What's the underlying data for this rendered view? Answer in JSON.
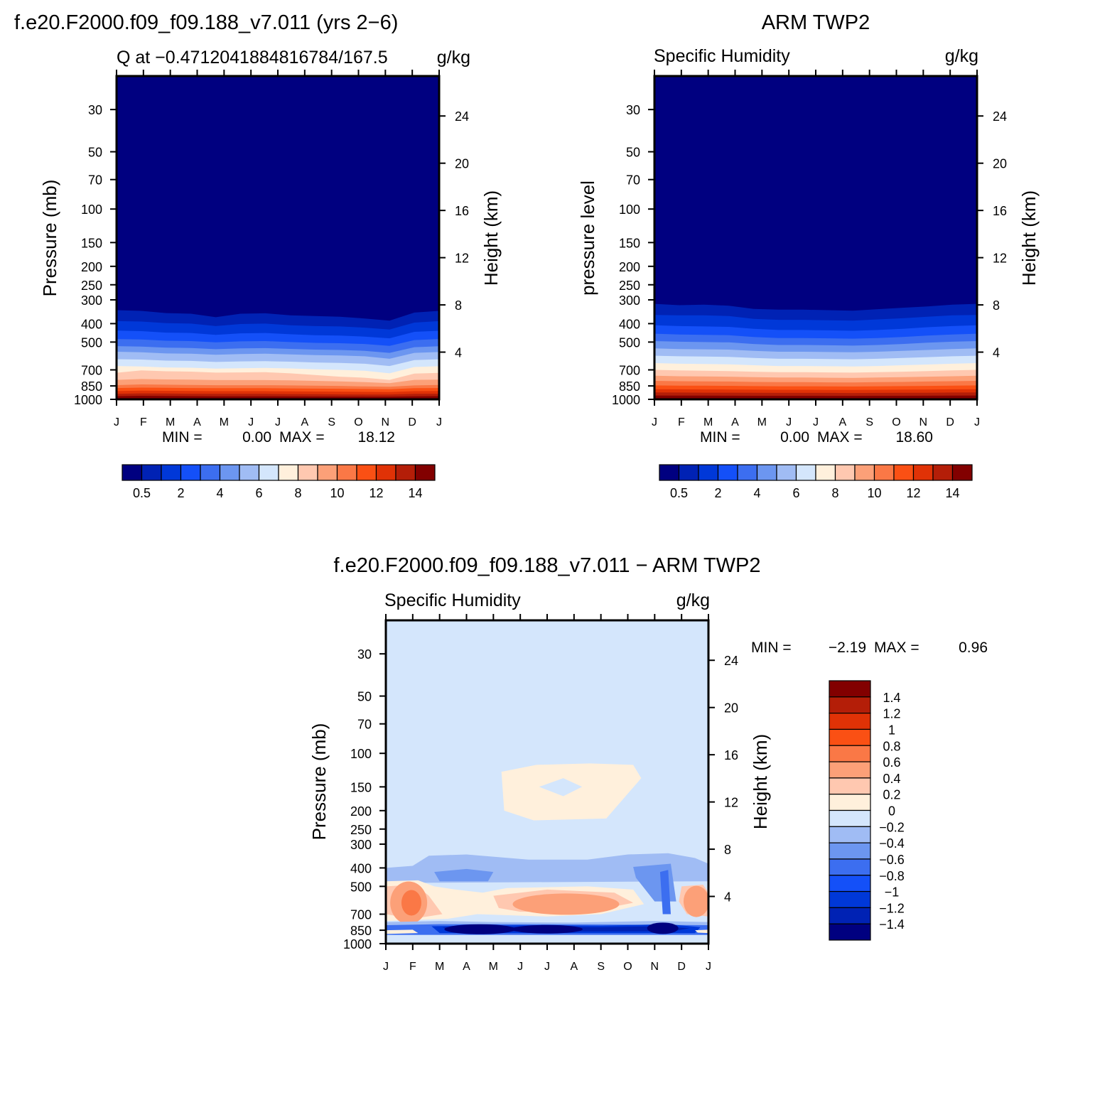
{
  "colors": {
    "levels_abs": [
      "#000080",
      "#0022b4",
      "#0038d8",
      "#1450f8",
      "#3c6ef0",
      "#6c96f0",
      "#a0bcf4",
      "#d4e6fc",
      "#fff0dc",
      "#ffc8b0",
      "#fca078",
      "#fa7846",
      "#fa5014",
      "#e03206",
      "#b41e08",
      "#820000"
    ],
    "levels_diff": [
      "#000080",
      "#0022b4",
      "#0038d8",
      "#1450f8",
      "#3c6ef0",
      "#6c96f0",
      "#a0bcf4",
      "#d4e6fc",
      "#fff0dc",
      "#ffc8b0",
      "#fca078",
      "#fa7846",
      "#fa5014",
      "#e03206",
      "#b41e08",
      "#820000"
    ]
  },
  "months": [
    "J",
    "F",
    "M",
    "A",
    "M",
    "J",
    "J",
    "A",
    "S",
    "O",
    "N",
    "D",
    "J"
  ],
  "pressure_ticks": [
    "30",
    "50",
    "70",
    "100",
    "150",
    "200",
    "250",
    "300",
    "400",
    "500",
    "700",
    "850",
    "1000"
  ],
  "height_ticks": [
    "4",
    "8",
    "12",
    "16",
    "20",
    "24"
  ],
  "panel_model": {
    "header": "f.e20.F2000.f09_f09.188_v7.011 (yrs 2−6)",
    "left_string": "Q at −0.4712041884816784/167.5",
    "right_string": "g/kg",
    "ylabel": "Pressure (mb)",
    "ylabel_right": "Height (km)",
    "min_label": "MIN =",
    "min_value": "0.00",
    "max_label": "MAX =",
    "max_value": "18.12",
    "colorbar_labels": [
      "0.5",
      "2",
      "4",
      "6",
      "8",
      "10",
      "12",
      "14"
    ]
  },
  "panel_obs": {
    "header": "ARM TWP2",
    "left_string": "Specific Humidity",
    "right_string": "g/kg",
    "ylabel": "pressure level",
    "ylabel_right": "Height (km)",
    "min_label": "MIN =",
    "min_value": "0.00",
    "max_label": "MAX =",
    "max_value": "18.60",
    "colorbar_labels": [
      "0.5",
      "2",
      "4",
      "6",
      "8",
      "10",
      "12",
      "14"
    ]
  },
  "panel_diff": {
    "header": "f.e20.F2000.f09_f09.188_v7.011 − ARM TWP2",
    "left_string": "Specific Humidity",
    "right_string": "g/kg",
    "ylabel": "Pressure (mb)",
    "ylabel_right": "Height (km)",
    "min_label": "MIN =",
    "min_value": "−2.19",
    "max_label": "MAX =",
    "max_value": "0.96",
    "colorbar_labels": [
      "1.4",
      "1.2",
      "1",
      "0.8",
      "0.6",
      "0.4",
      "0.2",
      "0",
      "−0.2",
      "−0.4",
      "−0.6",
      "−0.8",
      "−1",
      "−1.2",
      "−1.4"
    ]
  },
  "chart_data": [
    {
      "type": "heatmap",
      "title": "f.e20.F2000.f09_f09.188_v7.011 (yrs 2−6)",
      "subtitle": "Q at −0.4712041884816784/167.5",
      "units": "g/kg",
      "xlabel": "",
      "ylabel": "Pressure (mb)",
      "ylabel_right": "Height (km)",
      "y_scale": "log",
      "y_reversed": true,
      "x_categories": [
        "J",
        "F",
        "M",
        "A",
        "M",
        "J",
        "J",
        "A",
        "S",
        "O",
        "N",
        "D",
        "J"
      ],
      "contour_levels": [
        0.5,
        1,
        2,
        3,
        4,
        5,
        6,
        7,
        8,
        9,
        10,
        11,
        12,
        13,
        14
      ],
      "stats": {
        "min": 0.0,
        "max": 18.12
      },
      "series": [
        {
          "level": 0.5,
          "pressure_mb": [
            340,
            343,
            352,
            355,
            370,
            355,
            353,
            362,
            365,
            368,
            376,
            386,
            350,
            343
          ]
        },
        {
          "level": 1,
          "pressure_mb": [
            388,
            390,
            398,
            400,
            412,
            402,
            400,
            408,
            412,
            414,
            420,
            430,
            395,
            388
          ]
        },
        {
          "level": 2,
          "pressure_mb": [
            435,
            438,
            446,
            448,
            458,
            450,
            448,
            455,
            460,
            462,
            468,
            478,
            442,
            436
          ]
        },
        {
          "level": 3,
          "pressure_mb": [
            482,
            485,
            492,
            494,
            502,
            496,
            494,
            500,
            505,
            507,
            512,
            524,
            488,
            482
          ]
        },
        {
          "level": 4,
          "pressure_mb": [
            525,
            528,
            535,
            537,
            545,
            540,
            538,
            543,
            548,
            550,
            556,
            570,
            532,
            526
          ]
        },
        {
          "level": 5,
          "pressure_mb": [
            562,
            566,
            574,
            576,
            583,
            578,
            576,
            581,
            586,
            588,
            594,
            612,
            570,
            564
          ]
        },
        {
          "level": 6,
          "pressure_mb": [
            615,
            618,
            626,
            628,
            636,
            632,
            630,
            634,
            640,
            644,
            650,
            668,
            622,
            616
          ]
        },
        {
          "level": 7,
          "pressure_mb": [
            668,
            672,
            680,
            682,
            690,
            686,
            684,
            688,
            696,
            700,
            708,
            730,
            676,
            670
          ]
        },
        {
          "level": 8,
          "pressure_mb": [
            725,
            705,
            712,
            715,
            724,
            722,
            720,
            730,
            745,
            760,
            770,
            790,
            732,
            726
          ]
        },
        {
          "level": 9,
          "pressure_mb": [
            790,
            782,
            786,
            788,
            792,
            792,
            792,
            795,
            800,
            805,
            812,
            822,
            790,
            788
          ]
        },
        {
          "level": 10,
          "pressure_mb": [
            842,
            835,
            838,
            840,
            843,
            843,
            843,
            845,
            848,
            850,
            855,
            858,
            845,
            840
          ]
        },
        {
          "level": 11,
          "pressure_mb": [
            872,
            868,
            870,
            872,
            874,
            874,
            874,
            876,
            878,
            880,
            882,
            884,
            874,
            872
          ]
        },
        {
          "level": 12,
          "pressure_mb": [
            905,
            900,
            902,
            904,
            906,
            906,
            906,
            908,
            910,
            912,
            914,
            915,
            906,
            904
          ]
        },
        {
          "level": 13,
          "pressure_mb": [
            935,
            930,
            932,
            934,
            936,
            936,
            936,
            938,
            940,
            942,
            943,
            944,
            936,
            934
          ]
        },
        {
          "level": 14,
          "pressure_mb": [
            962,
            958,
            960,
            962,
            964,
            964,
            964,
            965,
            966,
            967,
            968,
            969,
            964,
            962
          ]
        }
      ]
    },
    {
      "type": "heatmap",
      "title": "ARM TWP2",
      "subtitle": "Specific Humidity",
      "units": "g/kg",
      "xlabel": "",
      "ylabel": "pressure level",
      "ylabel_right": "Height (km)",
      "y_scale": "log",
      "y_reversed": true,
      "x_categories": [
        "J",
        "F",
        "M",
        "A",
        "M",
        "J",
        "J",
        "A",
        "S",
        "O",
        "N",
        "D",
        "J"
      ],
      "contour_levels": [
        0.5,
        1,
        2,
        3,
        4,
        5,
        6,
        7,
        8,
        9,
        10,
        11,
        12,
        13,
        14
      ],
      "stats": {
        "min": 0.0,
        "max": 18.6
      },
      "series": [
        {
          "level": 0.5,
          "pressure_mb": [
            315,
            320,
            318,
            322,
            335,
            338,
            338,
            340,
            342,
            336,
            330,
            325,
            318,
            315
          ]
        },
        {
          "level": 1,
          "pressure_mb": [
            360,
            362,
            362,
            365,
            378,
            382,
            382,
            384,
            386,
            380,
            375,
            368,
            362,
            360
          ]
        },
        {
          "level": 2,
          "pressure_mb": [
            408,
            412,
            414,
            416,
            426,
            432,
            432,
            434,
            436,
            432,
            426,
            418,
            412,
            408
          ]
        },
        {
          "level": 3,
          "pressure_mb": [
            452,
            456,
            458,
            460,
            470,
            476,
            476,
            478,
            480,
            476,
            470,
            462,
            456,
            452
          ]
        },
        {
          "level": 4,
          "pressure_mb": [
            494,
            498,
            500,
            502,
            512,
            518,
            518,
            520,
            522,
            518,
            512,
            504,
            498,
            494
          ]
        },
        {
          "level": 5,
          "pressure_mb": [
            540,
            544,
            546,
            548,
            556,
            562,
            562,
            564,
            566,
            562,
            556,
            550,
            544,
            540
          ]
        },
        {
          "level": 6,
          "pressure_mb": [
            590,
            594,
            596,
            598,
            606,
            612,
            612,
            614,
            616,
            612,
            606,
            600,
            594,
            590
          ]
        },
        {
          "level": 7,
          "pressure_mb": [
            645,
            650,
            652,
            655,
            662,
            668,
            668,
            670,
            672,
            668,
            662,
            656,
            650,
            645
          ]
        },
        {
          "level": 8,
          "pressure_mb": [
            700,
            705,
            708,
            710,
            716,
            720,
            720,
            722,
            724,
            720,
            716,
            710,
            705,
            700
          ]
        },
        {
          "level": 9,
          "pressure_mb": [
            752,
            756,
            758,
            760,
            764,
            768,
            768,
            770,
            772,
            768,
            764,
            760,
            756,
            752
          ]
        },
        {
          "level": 10,
          "pressure_mb": [
            800,
            803,
            805,
            806,
            810,
            812,
            812,
            814,
            815,
            812,
            810,
            806,
            803,
            800
          ]
        },
        {
          "level": 11,
          "pressure_mb": [
            845,
            847,
            848,
            849,
            852,
            854,
            854,
            855,
            856,
            854,
            852,
            850,
            847,
            845
          ]
        },
        {
          "level": 12,
          "pressure_mb": [
            885,
            886,
            887,
            888,
            890,
            891,
            891,
            892,
            892,
            891,
            890,
            888,
            886,
            885
          ]
        },
        {
          "level": 13,
          "pressure_mb": [
            920,
            921,
            922,
            922,
            924,
            925,
            925,
            925,
            926,
            925,
            924,
            923,
            921,
            920
          ]
        },
        {
          "level": 14,
          "pressure_mb": [
            955,
            956,
            956,
            957,
            958,
            958,
            958,
            959,
            959,
            958,
            958,
            957,
            956,
            955
          ]
        }
      ]
    },
    {
      "type": "heatmap",
      "title": "f.e20.F2000.f09_f09.188_v7.011 − ARM TWP2",
      "subtitle": "Specific Humidity",
      "units": "g/kg",
      "xlabel": "",
      "ylabel": "Pressure (mb)",
      "ylabel_right": "Height (km)",
      "y_scale": "log",
      "y_reversed": true,
      "x_categories": [
        "J",
        "F",
        "M",
        "A",
        "M",
        "J",
        "J",
        "A",
        "S",
        "O",
        "N",
        "D",
        "J"
      ],
      "contour_levels": [
        -1.4,
        -1.2,
        -1,
        -0.8,
        -0.6,
        -0.4,
        -0.2,
        0,
        0.2,
        0.4,
        0.6,
        0.8,
        1,
        1.2,
        1.4
      ],
      "stats": {
        "min": -2.19,
        "max": 0.96
      },
      "background_level": -0.2
    }
  ]
}
